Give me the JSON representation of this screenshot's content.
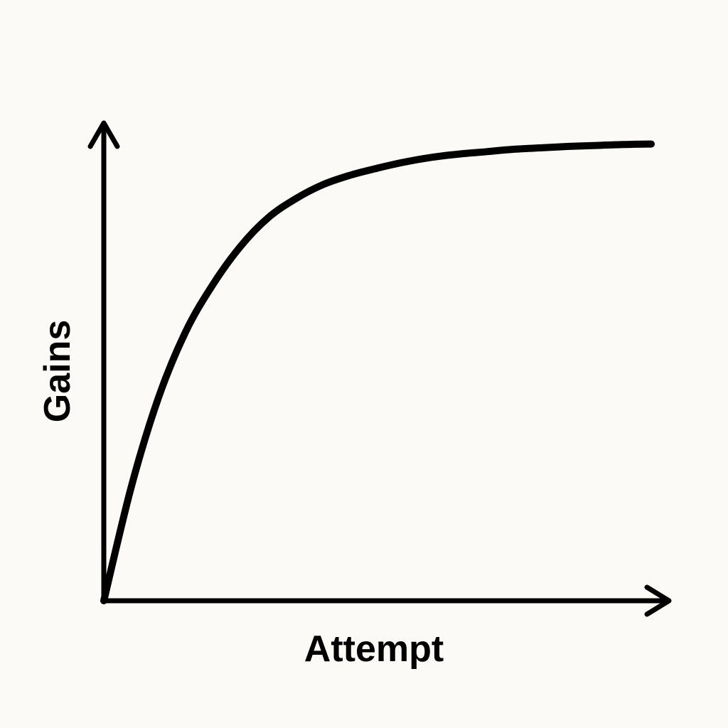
{
  "chart_data": {
    "type": "line",
    "title": "",
    "xlabel": "Attempt",
    "ylabel": "Gains",
    "xlim": [
      0,
      10
    ],
    "ylim": [
      0,
      10
    ],
    "grid": false,
    "legend": "none",
    "series": [
      {
        "x": [
          0,
          0.5,
          1,
          1.5,
          2,
          2.5,
          3,
          3.5,
          4,
          4.5,
          5,
          5.5,
          6,
          6.5,
          7,
          7.5,
          8,
          8.5,
          9,
          9.5,
          10
        ],
        "values": [
          0,
          2.4,
          4.3,
          5.7,
          6.7,
          7.5,
          8.1,
          8.5,
          8.8,
          9.0,
          9.15,
          9.28,
          9.38,
          9.45,
          9.5,
          9.55,
          9.58,
          9.61,
          9.63,
          9.65,
          9.66
        ]
      }
    ],
    "colors": {
      "line": "#000000",
      "background": "#fbfaf7"
    }
  }
}
